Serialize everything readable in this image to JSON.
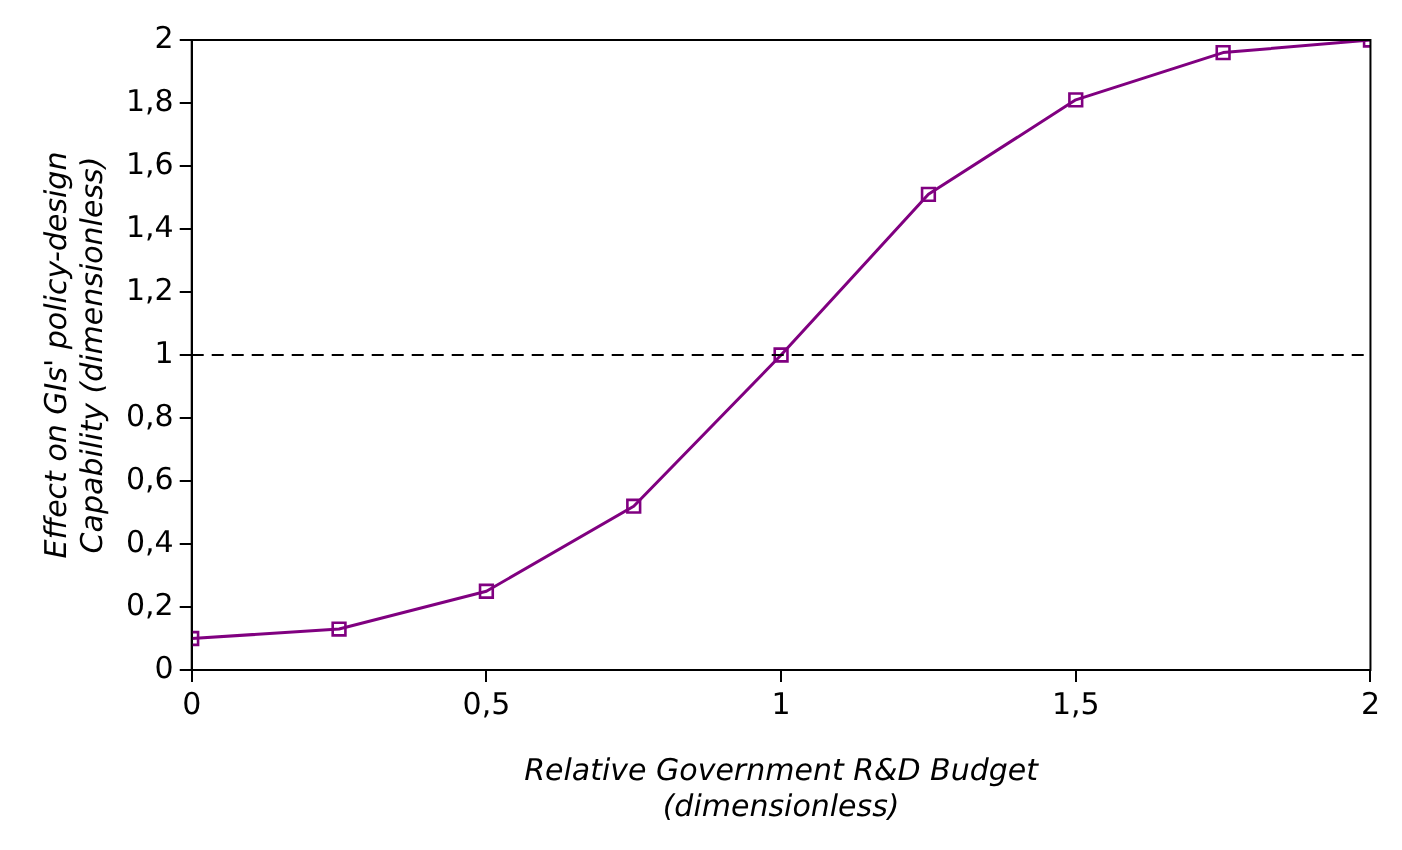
{
  "chart_data": {
    "type": "line",
    "xlabel": "Relative Government R&D Budget\n(dimensionless)",
    "ylabel": "Effect on GIs' policy-design\nCapability (dimensionless)",
    "x": [
      0,
      0.25,
      0.5,
      0.75,
      1,
      1.25,
      1.5,
      1.75,
      2
    ],
    "series": [
      {
        "color": "#800080",
        "values": [
          0.1,
          0.13,
          0.25,
          0.52,
          1.0,
          1.51,
          1.81,
          1.96,
          2.0
        ]
      }
    ],
    "xlim": [
      0,
      2
    ],
    "xticks": [
      0,
      {
        "value": 0.5,
        "label": "0,5"
      },
      1,
      {
        "value": 1.5,
        "label": "1,5"
      },
      2
    ],
    "ylim": [
      0,
      2
    ],
    "yticks": [
      0,
      {
        "value": 0.2,
        "label": "0,2"
      },
      {
        "value": 0.4,
        "label": "0,4"
      },
      {
        "value": 0.6,
        "label": "0,6"
      },
      {
        "value": 0.8,
        "label": "0,8"
      },
      1,
      {
        "value": 1.2,
        "label": "1,2"
      },
      {
        "value": 1.4,
        "label": "1,4"
      },
      {
        "value": 1.6,
        "label": "1,6"
      },
      {
        "value": 1.8,
        "label": "1,8"
      },
      2
    ],
    "ref_lines": [
      {
        "axis": "y",
        "value": 1,
        "color": "#000000",
        "line_style": "dashed"
      }
    ],
    "grid": false,
    "legend": false,
    "marker": "square",
    "line_style": "solid"
  }
}
